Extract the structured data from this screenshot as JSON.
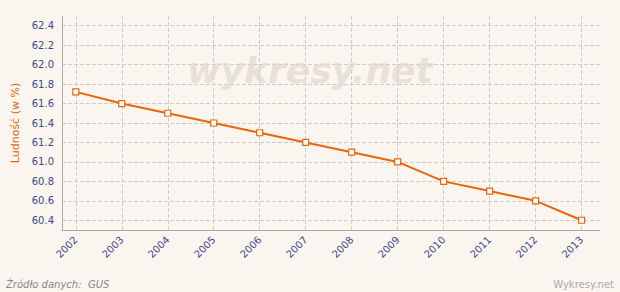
{
  "chart_data": {
    "type": "line",
    "y_label": "Ludność (w %)",
    "x": [
      2002,
      2003,
      2004,
      2005,
      2006,
      2007,
      2008,
      2009,
      2010,
      2011,
      2012,
      2013
    ],
    "values": [
      61.72,
      61.6,
      61.5,
      61.4,
      61.3,
      61.2,
      61.1,
      61.0,
      60.8,
      60.7,
      60.6,
      60.4
    ],
    "color": "#E8650A",
    "marker": "square",
    "xlim": [
      2001.7,
      2013.4
    ],
    "xticks": [
      2002,
      2003,
      2004,
      2005,
      2006,
      2007,
      2008,
      2009,
      2010,
      2011,
      2012,
      2013
    ],
    "ylim": [
      60.3,
      62.5
    ],
    "yticks": [
      60.4,
      60.6,
      60.8,
      {
        "value": 61.0,
        "label": "61.0"
      },
      61.2,
      61.4,
      61.6,
      61.8,
      {
        "value": 62.0,
        "label": "62.0"
      },
      62.2,
      62.4
    ],
    "grid": true,
    "annotations": [
      "Źródło danych:  GUS",
      "Wykresy.net",
      "wykresy.net"
    ]
  }
}
